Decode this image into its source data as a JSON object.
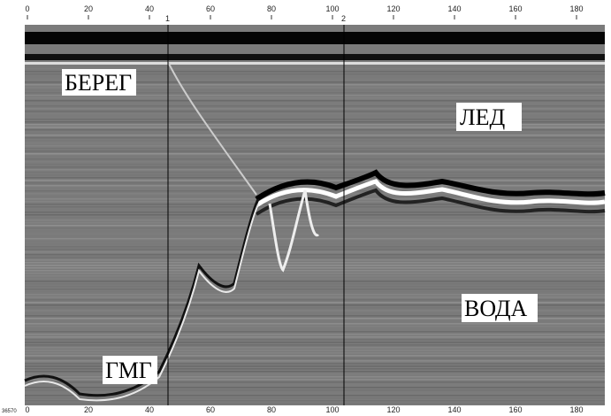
{
  "ticks": [
    0,
    20,
    40,
    60,
    80,
    100,
    120,
    140,
    160,
    180
  ],
  "markers": [
    "1",
    "2"
  ],
  "file_id": "36570",
  "regions": {
    "shore": "БЕРЕГ",
    "ice": "ЛЕД",
    "water": "ВОДА",
    "bottom": "ГМГ"
  }
}
